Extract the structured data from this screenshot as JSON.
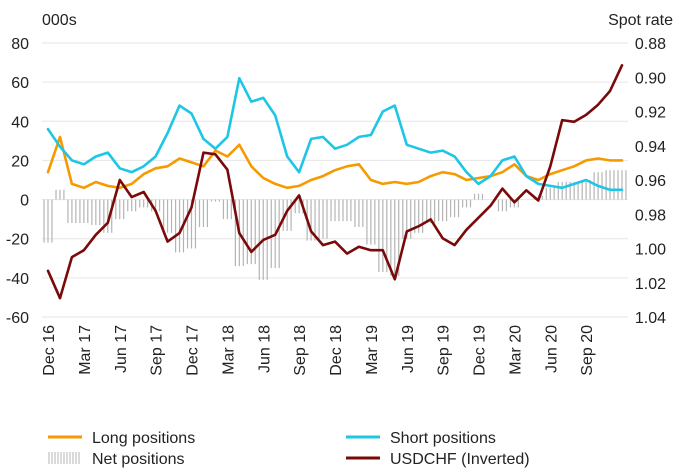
{
  "chart_data": {
    "type": "line",
    "left_unit": "000s",
    "right_unit": "Spot rate",
    "left_axis": {
      "ylim": [
        -60,
        80
      ],
      "ticks": [
        "80",
        "60",
        "40",
        "20",
        "0",
        "-20",
        "-40",
        "-60"
      ]
    },
    "right_axis": {
      "ylim": [
        0.88,
        1.04
      ],
      "inverted": true,
      "ticks": [
        "0.88",
        "0.90",
        "0.92",
        "0.94",
        "0.96",
        "0.98",
        "1.00",
        "1.02",
        "1.04"
      ]
    },
    "x_range": [
      "2016-12",
      "2020-12"
    ],
    "x_ticks": [
      "Dec 16",
      "Mar 17",
      "Jun 17",
      "Sep 17",
      "Dec 17",
      "Mar 18",
      "Jun 18",
      "Sep 18",
      "Dec 18",
      "Mar 19",
      "Jun 19",
      "Sep 19",
      "Dec 19",
      "Mar 20",
      "Jun 20",
      "Sep 20"
    ],
    "grid": "horizontal",
    "legend": {
      "placement": "bottom"
    },
    "series": [
      {
        "name": "Long positions",
        "axis": "left",
        "style": "line",
        "color": "#F59A00",
        "x": [
          "2016-12",
          "2017-01",
          "2017-02",
          "2017-03",
          "2017-04",
          "2017-05",
          "2017-06",
          "2017-07",
          "2017-08",
          "2017-09",
          "2017-10",
          "2017-11",
          "2017-12",
          "2018-01",
          "2018-02",
          "2018-03",
          "2018-04",
          "2018-05",
          "2018-06",
          "2018-07",
          "2018-08",
          "2018-09",
          "2018-10",
          "2018-11",
          "2018-12",
          "2019-01",
          "2019-02",
          "2019-03",
          "2019-04",
          "2019-05",
          "2019-06",
          "2019-07",
          "2019-08",
          "2019-09",
          "2019-10",
          "2019-11",
          "2019-12",
          "2020-01",
          "2020-02",
          "2020-03",
          "2020-04",
          "2020-05",
          "2020-06",
          "2020-07",
          "2020-08",
          "2020-09",
          "2020-10",
          "2020-11",
          "2020-12"
        ],
        "values": [
          14,
          32,
          8,
          6,
          9,
          7,
          6,
          8,
          13,
          16,
          17,
          21,
          19,
          17,
          25,
          22,
          28,
          17,
          11,
          8,
          6,
          7,
          10,
          12,
          15,
          17,
          18,
          10,
          8,
          9,
          8,
          9,
          12,
          14,
          13,
          10,
          11,
          12,
          14,
          18,
          12,
          10,
          13,
          15,
          17,
          20,
          21,
          20,
          20
        ]
      },
      {
        "name": "Short positions",
        "axis": "left",
        "style": "line",
        "color": "#1EC6E6",
        "x": [
          "2016-12",
          "2017-01",
          "2017-02",
          "2017-03",
          "2017-04",
          "2017-05",
          "2017-06",
          "2017-07",
          "2017-08",
          "2017-09",
          "2017-10",
          "2017-11",
          "2017-12",
          "2018-01",
          "2018-02",
          "2018-03",
          "2018-04",
          "2018-05",
          "2018-06",
          "2018-07",
          "2018-08",
          "2018-09",
          "2018-10",
          "2018-11",
          "2018-12",
          "2019-01",
          "2019-02",
          "2019-03",
          "2019-04",
          "2019-05",
          "2019-06",
          "2019-07",
          "2019-08",
          "2019-09",
          "2019-10",
          "2019-11",
          "2019-12",
          "2020-01",
          "2020-02",
          "2020-03",
          "2020-04",
          "2020-05",
          "2020-06",
          "2020-07",
          "2020-08",
          "2020-09",
          "2020-10",
          "2020-11",
          "2020-12"
        ],
        "values": [
          36,
          27,
          20,
          18,
          22,
          24,
          16,
          14,
          17,
          22,
          34,
          48,
          44,
          31,
          26,
          32,
          62,
          50,
          52,
          43,
          22,
          14,
          31,
          32,
          26,
          28,
          32,
          33,
          45,
          48,
          28,
          26,
          24,
          25,
          22,
          14,
          8,
          12,
          20,
          22,
          12,
          8,
          7,
          6,
          8,
          10,
          7,
          5,
          5
        ]
      },
      {
        "name": "Net positions",
        "axis": "left",
        "style": "bars",
        "color": "#B4B4B4",
        "x": [
          "2016-12",
          "2017-01",
          "2017-02",
          "2017-03",
          "2017-04",
          "2017-05",
          "2017-06",
          "2017-07",
          "2017-08",
          "2017-09",
          "2017-10",
          "2017-11",
          "2017-12",
          "2018-01",
          "2018-02",
          "2018-03",
          "2018-04",
          "2018-05",
          "2018-06",
          "2018-07",
          "2018-08",
          "2018-09",
          "2018-10",
          "2018-11",
          "2018-12",
          "2019-01",
          "2019-02",
          "2019-03",
          "2019-04",
          "2019-05",
          "2019-06",
          "2019-07",
          "2019-08",
          "2019-09",
          "2019-10",
          "2019-11",
          "2019-12",
          "2020-01",
          "2020-02",
          "2020-03",
          "2020-04",
          "2020-05",
          "2020-06",
          "2020-07",
          "2020-08",
          "2020-09",
          "2020-10",
          "2020-11",
          "2020-12"
        ],
        "values": [
          -22,
          5,
          -12,
          -12,
          -13,
          -17,
          -10,
          -6,
          -4,
          -6,
          -17,
          -27,
          -25,
          -14,
          -1,
          -10,
          -34,
          -33,
          -41,
          -35,
          -16,
          -7,
          -21,
          -20,
          -11,
          -11,
          -14,
          -23,
          -37,
          -39,
          -20,
          -17,
          -12,
          -11,
          -9,
          -4,
          3,
          0,
          -6,
          -4,
          0,
          2,
          6,
          9,
          9,
          10,
          14,
          15,
          15
        ]
      },
      {
        "name": "USDCHF (Inverted)",
        "axis": "right",
        "style": "line",
        "color": "#7A0A0A",
        "x": [
          "2016-12",
          "2017-01",
          "2017-02",
          "2017-03",
          "2017-04",
          "2017-05",
          "2017-06",
          "2017-07",
          "2017-08",
          "2017-09",
          "2017-10",
          "2017-11",
          "2017-12",
          "2018-01",
          "2018-02",
          "2018-03",
          "2018-04",
          "2018-05",
          "2018-06",
          "2018-07",
          "2018-08",
          "2018-09",
          "2018-10",
          "2018-11",
          "2018-12",
          "2019-01",
          "2019-02",
          "2019-03",
          "2019-04",
          "2019-05",
          "2019-06",
          "2019-07",
          "2019-08",
          "2019-09",
          "2019-10",
          "2019-11",
          "2019-12",
          "2020-01",
          "2020-02",
          "2020-03",
          "2020-04",
          "2020-05",
          "2020-06",
          "2020-07",
          "2020-08",
          "2020-09",
          "2020-10",
          "2020-11",
          "2020-12"
        ],
        "values": [
          1.013,
          1.029,
          1.005,
          1.001,
          0.992,
          0.985,
          0.96,
          0.97,
          0.967,
          0.978,
          0.996,
          0.991,
          0.976,
          0.944,
          0.945,
          0.954,
          0.991,
          1.002,
          0.995,
          0.992,
          0.978,
          0.969,
          0.99,
          0.998,
          0.996,
          1.003,
          0.999,
          1.001,
          1.001,
          1.018,
          0.99,
          0.987,
          0.983,
          0.994,
          0.998,
          0.989,
          0.982,
          0.975,
          0.965,
          0.973,
          0.966,
          0.972,
          0.952,
          0.925,
          0.926,
          0.922,
          0.916,
          0.908,
          0.893
        ]
      }
    ]
  }
}
